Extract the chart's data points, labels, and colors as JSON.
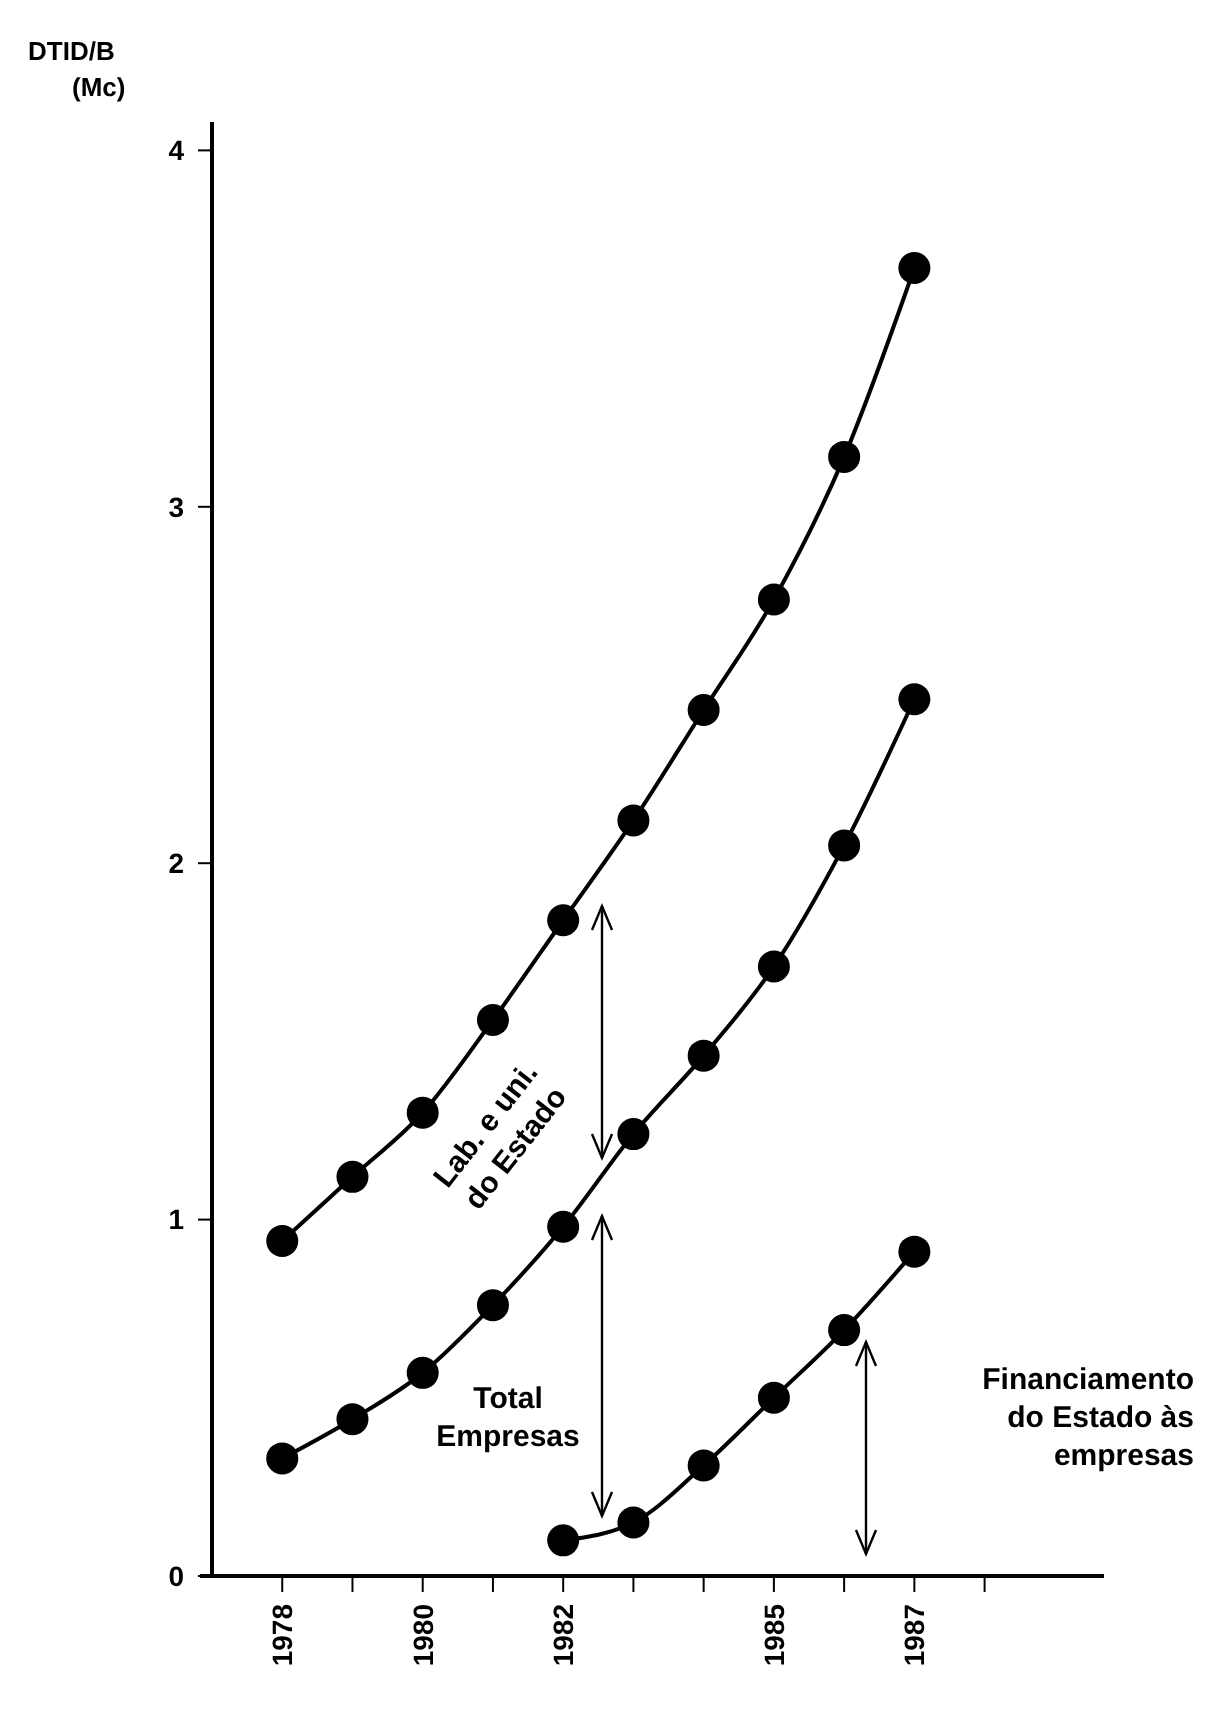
{
  "chart_data": {
    "type": "line",
    "ylabel": "DTID/B\n(Mc)",
    "x": [
      1978,
      1979,
      1980,
      1981,
      1982,
      1983,
      1984,
      1985,
      1986,
      1987
    ],
    "series": [
      {
        "color": "#000000",
        "values": [
          0.94,
          1.12,
          1.3,
          1.56,
          1.84,
          2.12,
          2.43,
          2.74,
          3.14,
          3.67
        ]
      },
      {
        "color": "#000000",
        "values": [
          0.33,
          0.44,
          0.57,
          0.76,
          0.98,
          1.24,
          1.46,
          1.71,
          2.05,
          2.46
        ]
      },
      {
        "color": "#000000",
        "values": [
          null,
          null,
          null,
          null,
          0.1,
          0.15,
          0.31,
          0.5,
          0.69,
          0.91
        ]
      }
    ],
    "xlim": [
      1977,
      1989.7
    ],
    "xticks": [
      1978,
      {
        "value": 1979,
        "label": null
      },
      1980,
      {
        "value": 1981,
        "label": null
      },
      1982,
      {
        "value": 1983,
        "label": null
      },
      {
        "value": 1984,
        "label": null
      },
      1985,
      {
        "value": 1986,
        "label": null
      },
      1987,
      {
        "value": 1988,
        "label": null
      }
    ],
    "ylim": [
      0,
      4.08
    ],
    "yticks": [
      0,
      1,
      2,
      3,
      4
    ],
    "marker": "circle",
    "line_style": "solid",
    "grid": false,
    "annotations": [
      "Lab. e uni.\ndo Estado",
      "Total\nEmpresas",
      "Financiamento\ndo Estado às\nempresas"
    ]
  }
}
